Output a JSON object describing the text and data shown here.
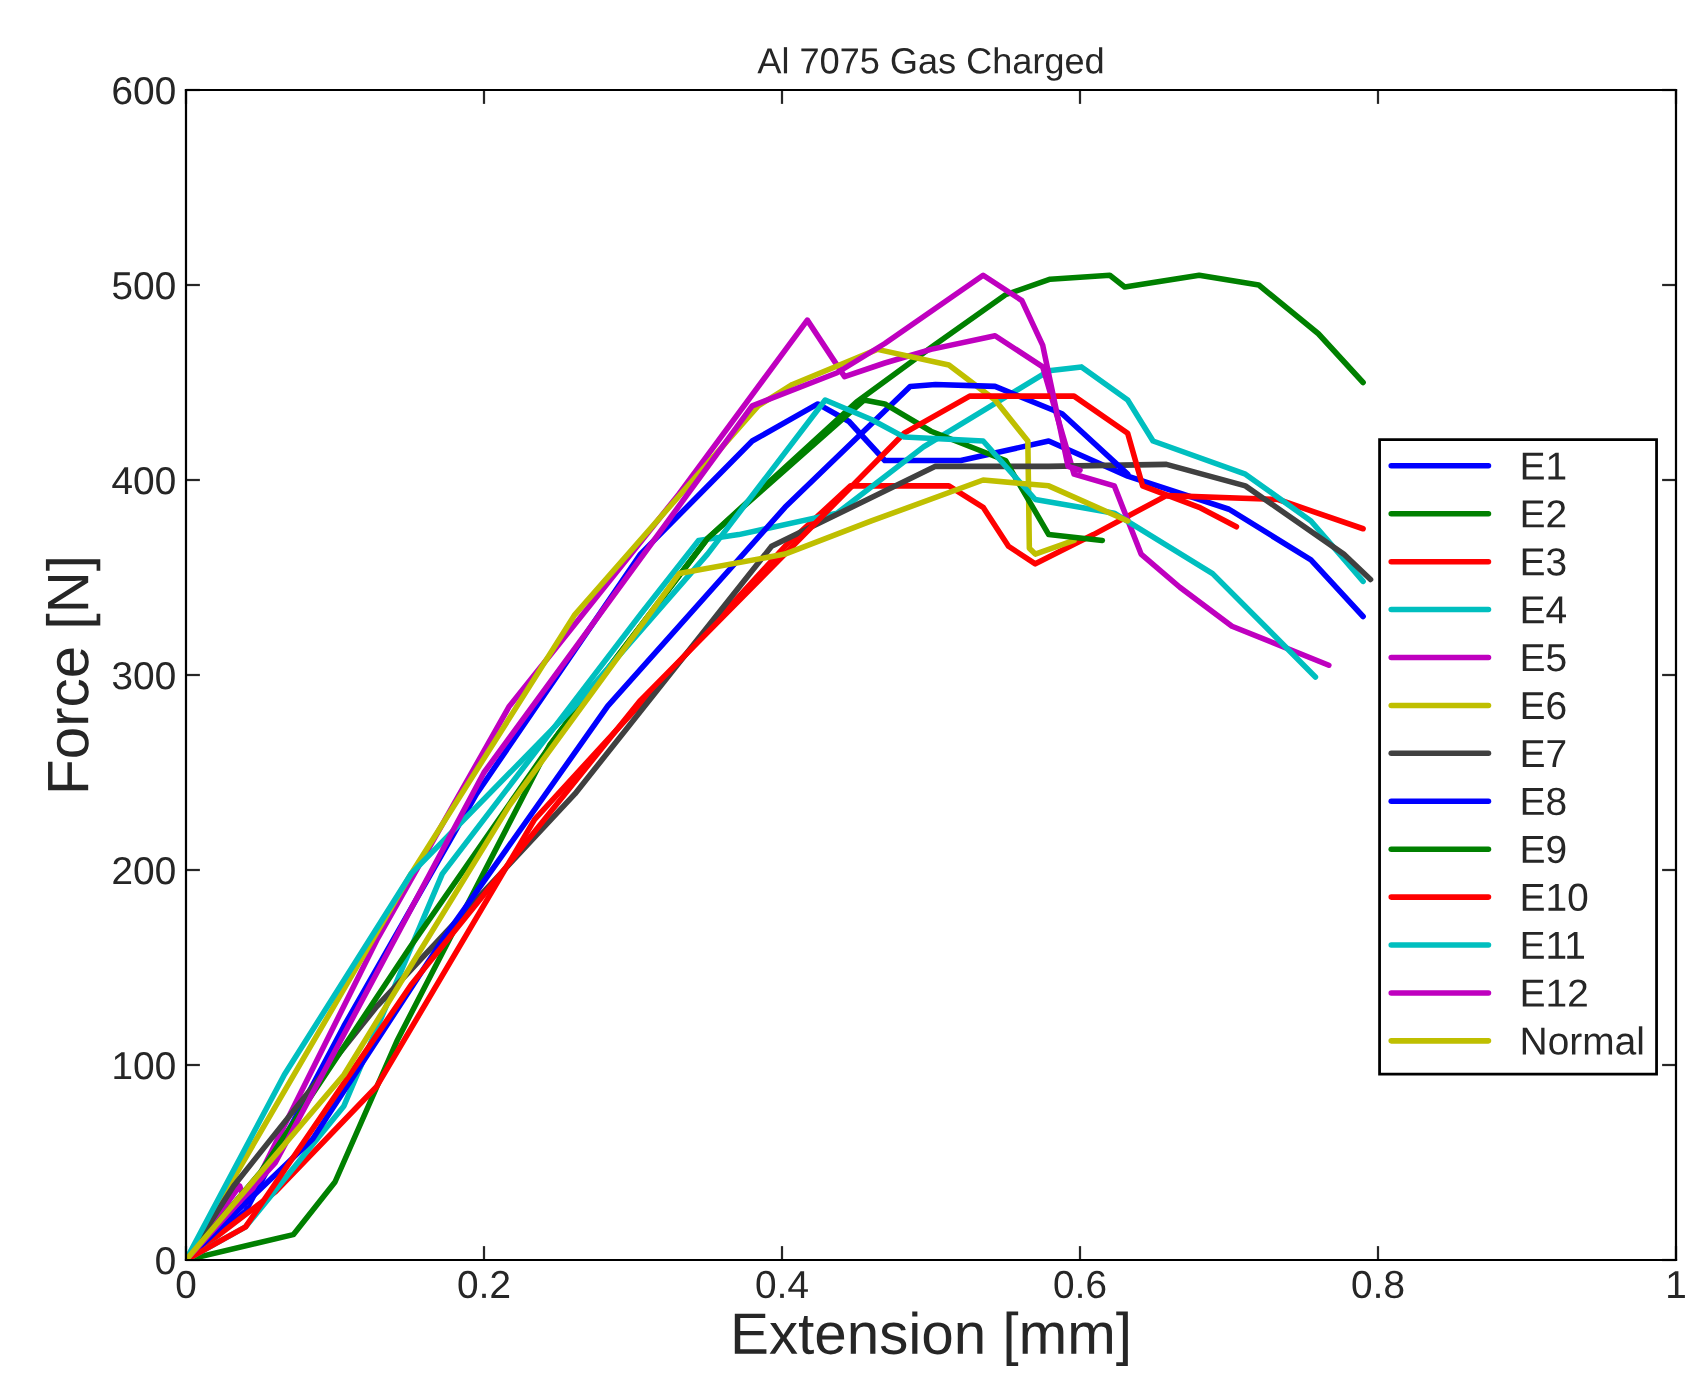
{
  "chart_data": {
    "type": "line",
    "title": "Al 7075 Gas Charged",
    "xlabel": "Extension [mm]",
    "ylabel": "Force [N]",
    "xlim": [
      0,
      1
    ],
    "xticks": [
      0,
      0.2,
      0.4,
      0.6,
      0.8,
      1
    ],
    "ylim": [
      0,
      600
    ],
    "yticks": [
      0,
      100,
      200,
      300,
      400,
      500,
      600
    ],
    "grid": false,
    "legend": "right",
    "marker": "none",
    "line_style": "solid",
    "series": [
      {
        "name": "E1",
        "color": "#0000ff",
        "x": [
          0,
          0.04,
          0.106,
          0.195,
          0.305,
          0.38,
          0.424,
          0.445,
          0.469,
          0.52,
          0.579,
          0.632,
          0.7,
          0.755,
          0.79
        ],
        "values": [
          0,
          25,
          120,
          239,
          362,
          420,
          439,
          430,
          410,
          410,
          420,
          402,
          385,
          359,
          330
        ]
      },
      {
        "name": "E2",
        "color": "#008000",
        "x": [
          0,
          0.072,
          0.1,
          0.142,
          0.244,
          0.35,
          0.45,
          0.5,
          0.55,
          0.58,
          0.62,
          0.63,
          0.68,
          0.72,
          0.76,
          0.79
        ],
        "values": [
          0,
          13,
          40,
          113,
          264,
          370,
          440,
          468,
          495,
          503,
          505,
          499,
          505,
          500,
          475,
          450
        ]
      },
      {
        "name": "E3",
        "color": "#ff0000",
        "x": [
          0,
          0.06,
          0.128,
          0.234,
          0.402,
          0.446,
          0.512,
          0.535,
          0.552,
          0.57,
          0.609,
          0.658,
          0.733,
          0.79
        ],
        "values": [
          0,
          35,
          89,
          226,
          366,
          397,
          397,
          386,
          366,
          357,
          372,
          392,
          390,
          375
        ]
      },
      {
        "name": "E4",
        "color": "#00bfbf",
        "x": [
          0,
          0.04,
          0.106,
          0.172,
          0.305,
          0.344,
          0.371,
          0.437,
          0.495,
          0.579,
          0.601,
          0.632,
          0.649,
          0.711,
          0.755,
          0.79
        ],
        "values": [
          0,
          17,
          79,
          198,
          331,
          369,
          372,
          383,
          417,
          456,
          458,
          441,
          420,
          403,
          379,
          348
        ]
      },
      {
        "name": "E5",
        "color": "#bf00bf",
        "x": [
          0,
          0.036,
          0.04,
          0.128,
          0.217,
          0.331,
          0.417,
          0.442,
          0.469,
          0.5,
          0.543,
          0.575,
          0.596,
          0.623,
          0.641,
          0.667,
          0.702,
          0.767
        ],
        "values": [
          0,
          38,
          29,
          164,
          284,
          393,
          482,
          453,
          460,
          467,
          474,
          458,
          403,
          397,
          362,
          345,
          325,
          305
        ]
      },
      {
        "name": "E6",
        "color": "#bfbf00",
        "x": [
          0,
          0.151,
          0.261,
          0.384,
          0.407,
          0.464,
          0.512,
          0.543,
          0.565,
          0.566,
          0.57,
          0.596
        ],
        "values": [
          0,
          198,
          331,
          438,
          449,
          467,
          459,
          441,
          420,
          365,
          362,
          369
        ]
      },
      {
        "name": "E7",
        "color": "#404040",
        "x": [
          0,
          0.032,
          0.128,
          0.261,
          0.393,
          0.503,
          0.579,
          0.658,
          0.711,
          0.777,
          0.795
        ],
        "values": [
          0,
          38,
          130,
          239,
          366,
          407,
          407,
          408,
          397,
          362,
          349
        ]
      },
      {
        "name": "E8",
        "color": "#0000ff",
        "x": [
          0,
          0.085,
          0.172,
          0.283,
          0.402,
          0.486,
          0.503,
          0.543,
          0.588,
          0.632
        ],
        "values": [
          0,
          62,
          164,
          284,
          386,
          448,
          449,
          448,
          434,
          403
        ]
      },
      {
        "name": "E9",
        "color": "#008000",
        "x": [
          0,
          0.05,
          0.15,
          0.25,
          0.35,
          0.455,
          0.469,
          0.5,
          0.55,
          0.579,
          0.615
        ],
        "values": [
          0,
          45,
          160,
          270,
          370,
          441,
          439,
          425,
          410,
          372,
          369
        ]
      },
      {
        "name": "E10",
        "color": "#ff0000",
        "x": [
          0,
          0.04,
          0.151,
          0.305,
          0.482,
          0.526,
          0.596,
          0.632,
          0.642,
          0.68,
          0.705
        ],
        "values": [
          0,
          17,
          141,
          287,
          424,
          443,
          443,
          424,
          397,
          386,
          376
        ]
      },
      {
        "name": "E11",
        "color": "#00bfbf",
        "x": [
          0,
          0.066,
          0.151,
          0.261,
          0.35,
          0.429,
          0.46,
          0.482,
          0.535,
          0.57,
          0.623,
          0.689,
          0.758
        ],
        "values": [
          0,
          95,
          198,
          284,
          362,
          441,
          431,
          422,
          420,
          390,
          383,
          352,
          299
        ]
      },
      {
        "name": "E12",
        "color": "#bf00bf",
        "x": [
          0,
          0.06,
          0.2,
          0.38,
          0.437,
          0.469,
          0.535,
          0.561,
          0.575,
          0.592,
          0.6
        ],
        "values": [
          0,
          50,
          250,
          438,
          455,
          470,
          505,
          492,
          469,
          407,
          405
        ]
      },
      {
        "name": "Normal",
        "color": "#bfbf00",
        "x": [
          0,
          0.106,
          0.217,
          0.331,
          0.402,
          0.46,
          0.535,
          0.579,
          0.632
        ],
        "values": [
          0,
          95,
          233,
          352,
          362,
          379,
          400,
          397,
          379
        ]
      }
    ]
  }
}
